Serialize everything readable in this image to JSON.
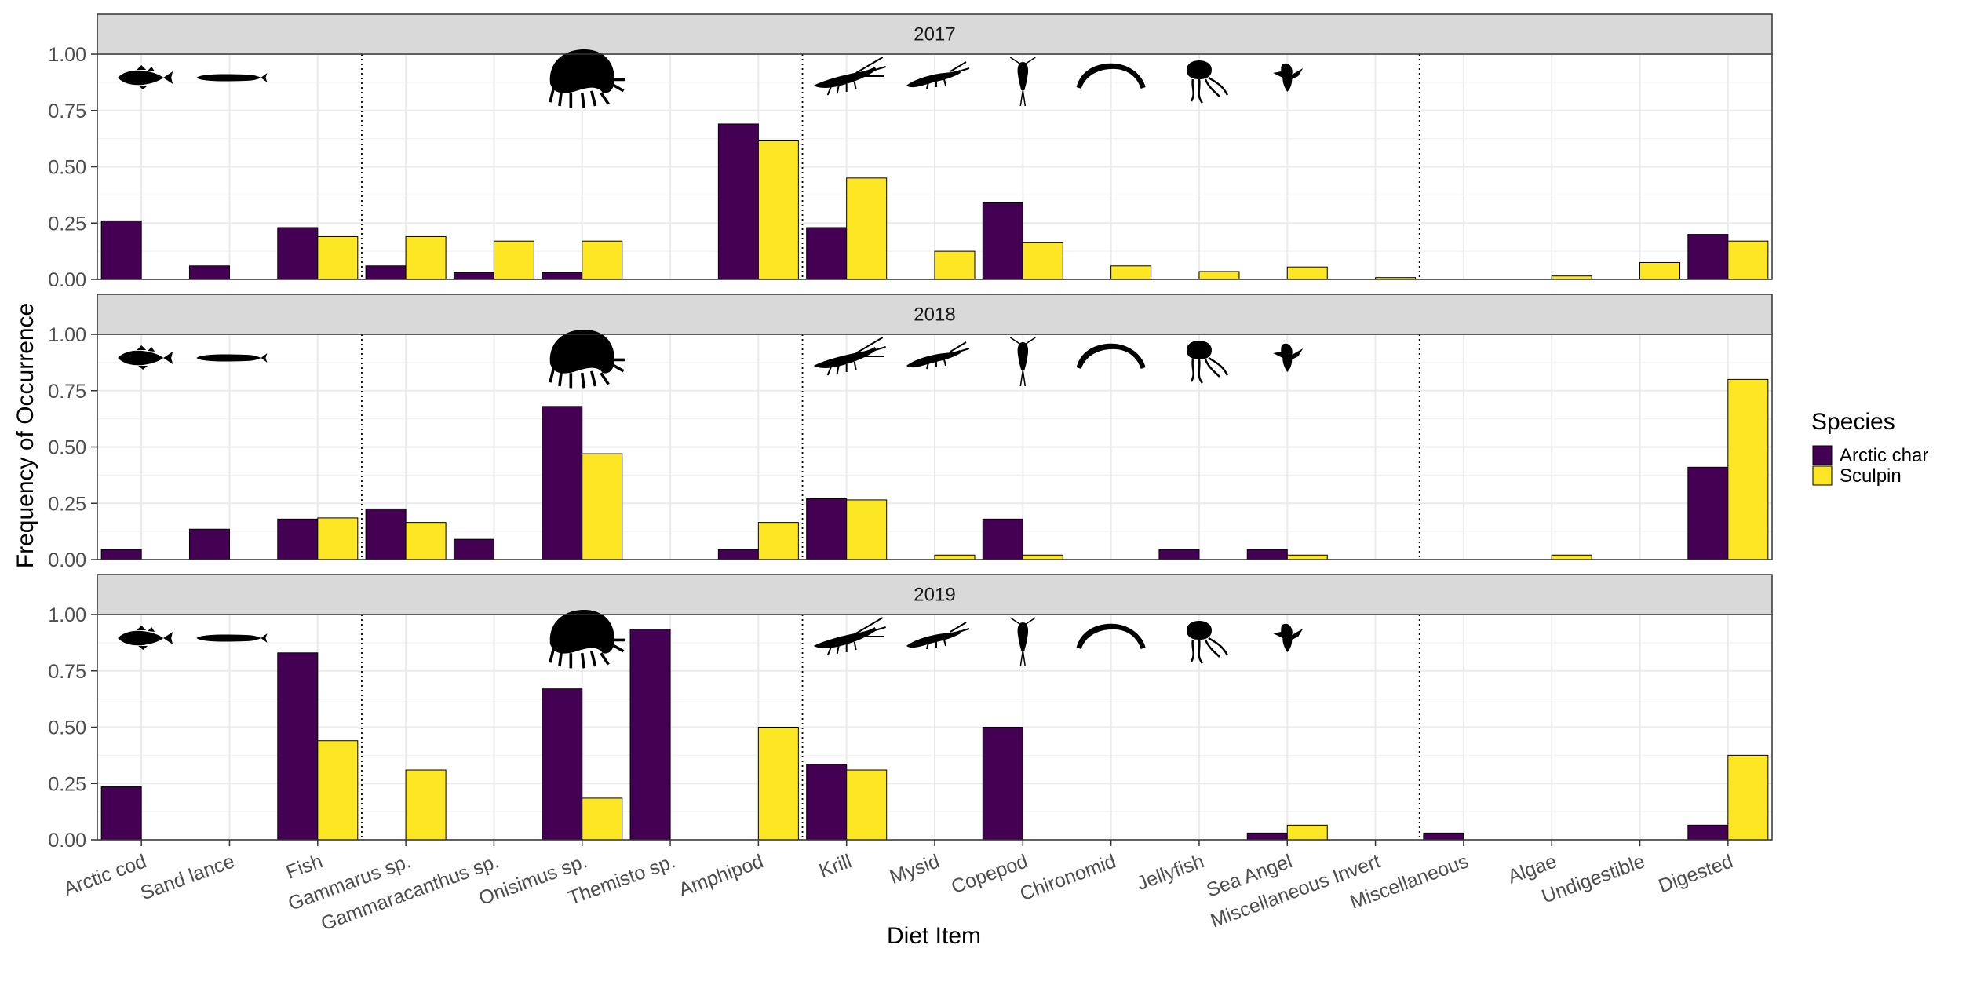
{
  "chart_data": {
    "type": "bar",
    "xlabel": "Diet Item",
    "ylabel": "Frequency of Occurrence",
    "ylim": [
      0,
      1.0
    ],
    "yticks": [
      "0.00",
      "0.25",
      "0.50",
      "0.75",
      "1.00"
    ],
    "grid": true,
    "legend": {
      "title": "Species",
      "position": "right",
      "entries": [
        {
          "name": "Arctic char",
          "color": "#440154"
        },
        {
          "name": "Sculpin",
          "color": "#FDE725"
        }
      ]
    },
    "categories": [
      "Arctic cod",
      "Sand lance",
      "Fish",
      "Gammarus sp.",
      "Gammaracanthus sp.",
      "Onisimus sp.",
      "Themisto sp.",
      "Amphipod",
      "Krill",
      "Mysid",
      "Copepod",
      "Chironomid",
      "Jellyfish",
      "Sea Angel",
      "Miscellaneous Invert",
      "Miscellaneous",
      "Algae",
      "Undigestible",
      "Digested"
    ],
    "group_separators_after": [
      "Fish",
      "Amphipod",
      "Miscellaneous Invert"
    ],
    "icons": [
      {
        "category": "Arctic cod",
        "name": "arctic-cod-icon"
      },
      {
        "category": "Sand lance",
        "name": "sand-lance-icon"
      },
      {
        "category": "Onisimus sp.",
        "name": "amphipod-icon"
      },
      {
        "category": "Krill",
        "name": "krill-icon"
      },
      {
        "category": "Mysid",
        "name": "mysid-icon"
      },
      {
        "category": "Copepod",
        "name": "copepod-icon"
      },
      {
        "category": "Chironomid",
        "name": "chironomid-icon"
      },
      {
        "category": "Jellyfish",
        "name": "jellyfish-icon"
      },
      {
        "category": "Sea Angel",
        "name": "sea-angel-icon"
      }
    ],
    "panels": [
      {
        "strip": "2017",
        "series": [
          {
            "name": "Arctic char",
            "values": [
              0.26,
              0.06,
              0.23,
              0.06,
              0.03,
              0.03,
              0,
              0.69,
              0.23,
              0,
              0.34,
              0,
              0,
              0,
              0,
              0,
              0,
              0,
              0.2
            ]
          },
          {
            "name": "Sculpin",
            "values": [
              0,
              0,
              0.19,
              0.19,
              0.17,
              0.17,
              0,
              0.615,
              0.45,
              0.125,
              0.165,
              0.06,
              0.035,
              0.055,
              0.008,
              0,
              0.015,
              0.075,
              0.17
            ]
          }
        ]
      },
      {
        "strip": "2018",
        "series": [
          {
            "name": "Arctic char",
            "values": [
              0.045,
              0.135,
              0.18,
              0.225,
              0.09,
              0.68,
              0,
              0.045,
              0.27,
              0,
              0.18,
              0,
              0.045,
              0.045,
              0,
              0,
              0,
              0,
              0.41
            ]
          },
          {
            "name": "Sculpin",
            "values": [
              0,
              0,
              0.185,
              0.165,
              0,
              0.47,
              0,
              0.165,
              0.265,
              0.02,
              0.02,
              0,
              0,
              0.02,
              0,
              0,
              0.02,
              0,
              0.8
            ]
          }
        ]
      },
      {
        "strip": "2019",
        "series": [
          {
            "name": "Arctic char",
            "values": [
              0.235,
              0,
              0.83,
              0,
              0,
              0.67,
              0.935,
              0,
              0.335,
              0,
              0.5,
              0,
              0,
              0.03,
              0,
              0.03,
              0,
              0,
              0.065
            ]
          },
          {
            "name": "Sculpin",
            "values": [
              0,
              0,
              0.44,
              0.31,
              0,
              0.185,
              0,
              0.5,
              0.31,
              0,
              0,
              0,
              0,
              0.065,
              0,
              0,
              0,
              0,
              0.375
            ]
          }
        ]
      }
    ]
  }
}
